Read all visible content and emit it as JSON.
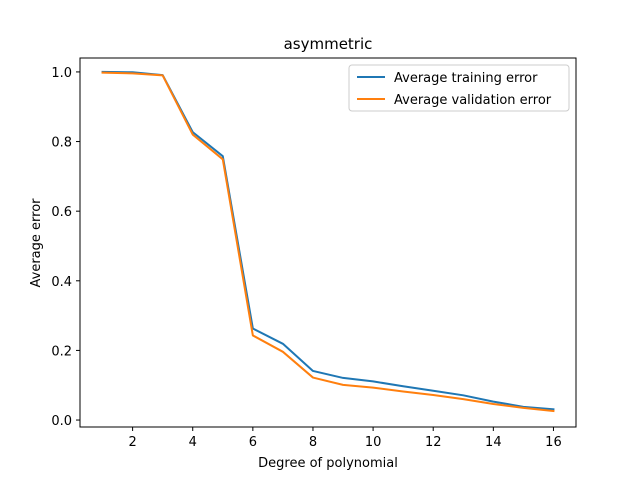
{
  "chart_data": {
    "type": "line",
    "title": "asymmetric",
    "xlabel": "Degree of polynomial",
    "ylabel": "Average error",
    "xlim": [
      0.25,
      16.75
    ],
    "ylim": [
      -0.02,
      1.04
    ],
    "xticks": [
      2,
      4,
      6,
      8,
      10,
      12,
      14,
      16
    ],
    "yticks": [
      0.0,
      0.2,
      0.4,
      0.6,
      0.8,
      1.0
    ],
    "xtick_labels": [
      "2",
      "4",
      "6",
      "8",
      "10",
      "12",
      "14",
      "16"
    ],
    "ytick_labels": [
      "0.0",
      "0.2",
      "0.4",
      "0.6",
      "0.8",
      "1.0"
    ],
    "grid": false,
    "legend_position": "top-right",
    "x": [
      1,
      2,
      3,
      4,
      5,
      6,
      7,
      8,
      9,
      10,
      11,
      12,
      13,
      14,
      15,
      16
    ],
    "series": [
      {
        "name": "Average training error",
        "color": "#1f77b4",
        "values": [
          1.0,
          0.999,
          0.991,
          0.827,
          0.758,
          0.263,
          0.219,
          0.141,
          0.121,
          0.111,
          0.097,
          0.084,
          0.071,
          0.053,
          0.038,
          0.031
        ]
      },
      {
        "name": "Average validation error",
        "color": "#ff7f0e",
        "values": [
          0.998,
          0.996,
          0.99,
          0.82,
          0.749,
          0.243,
          0.196,
          0.122,
          0.101,
          0.093,
          0.082,
          0.072,
          0.06,
          0.046,
          0.035,
          0.026
        ]
      }
    ]
  }
}
